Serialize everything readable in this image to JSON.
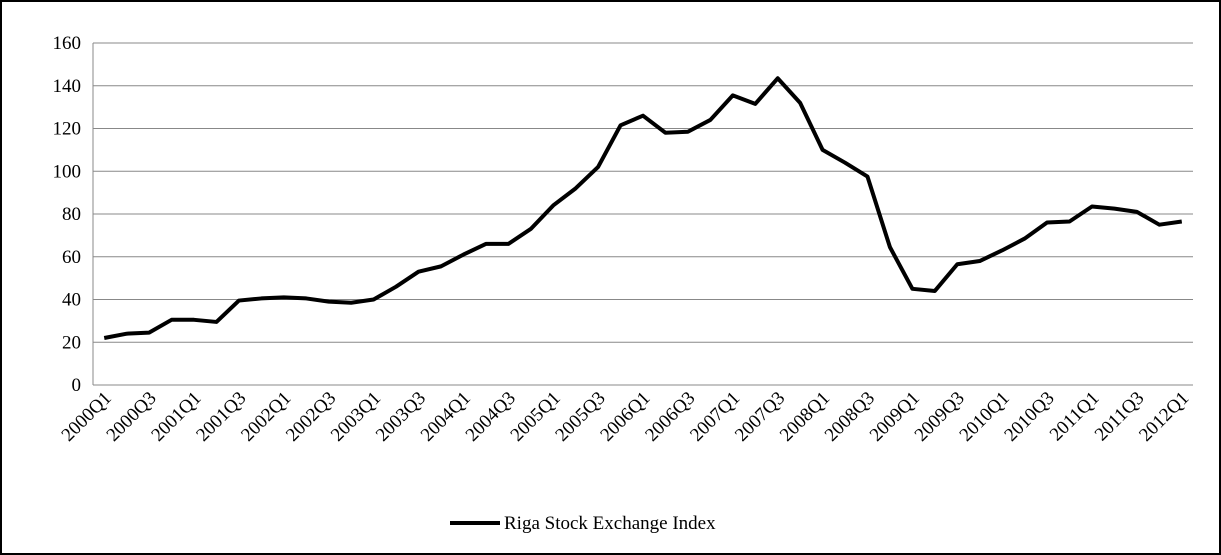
{
  "chart_data": {
    "type": "line",
    "categories": [
      "2000Q1",
      null,
      "2000Q3",
      null,
      "2001Q1",
      null,
      "2001Q3",
      null,
      "2002Q1",
      null,
      "2002Q3",
      null,
      "2003Q1",
      null,
      "2003Q3",
      null,
      "2004Q1",
      null,
      "2004Q3",
      null,
      "2005Q1",
      null,
      "2005Q3",
      null,
      "2006Q1",
      null,
      "2006Q3",
      null,
      "2007Q1",
      null,
      "2007Q3",
      null,
      "2008Q1",
      null,
      "2008Q3",
      null,
      "2009Q1",
      null,
      "2009Q3",
      null,
      "2010Q1",
      null,
      "2010Q3",
      null,
      "2011Q1",
      null,
      "2011Q3",
      null,
      "2012Q1"
    ],
    "series": [
      {
        "name": "Riga Stock Exchange Index",
        "color": "#000000",
        "values": [
          22,
          24,
          24.5,
          30.5,
          30.5,
          29.5,
          39.5,
          40.5,
          41,
          40.5,
          39,
          38.5,
          40,
          46,
          53,
          55.5,
          61,
          66,
          66,
          73,
          84,
          92,
          102,
          121.5,
          126,
          118,
          118.5,
          124,
          135.5,
          131.5,
          143.5,
          132,
          110,
          104,
          97.5,
          64.5,
          45,
          44,
          56.5,
          58,
          63,
          68.5,
          76,
          76.5,
          83.5,
          82.5,
          81,
          75,
          76.5
        ]
      }
    ],
    "ylim": [
      0,
      160
    ],
    "yticks": [
      0,
      20,
      40,
      60,
      80,
      100,
      120,
      140,
      160
    ],
    "grid": true,
    "legend": "bottom"
  }
}
